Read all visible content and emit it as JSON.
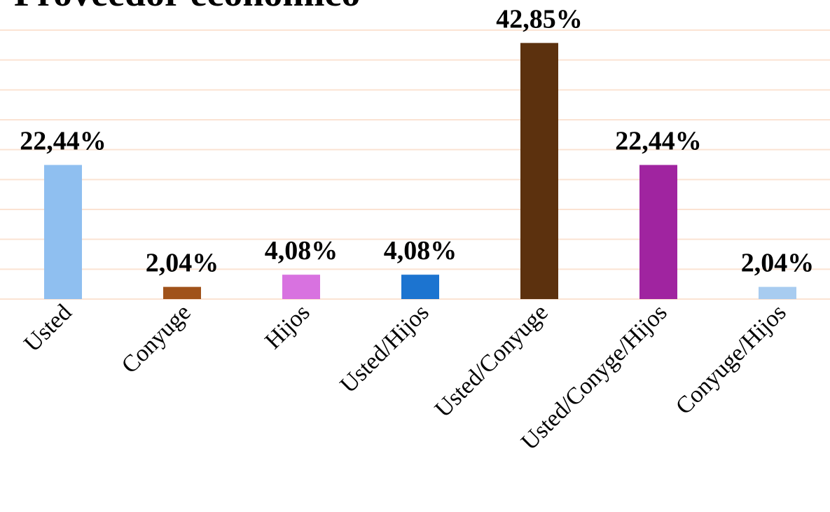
{
  "chart_data": {
    "type": "bar",
    "title": "Proveedor económico",
    "categories": [
      "Usted",
      "Conyuge",
      "Hijos",
      "Usted/Hijos",
      "Usted/Conyuge",
      "Usted/Conyge/Hijos",
      "Conyuge/Hijos"
    ],
    "values": [
      22.44,
      2.04,
      4.08,
      4.08,
      42.85,
      22.44,
      2.04
    ],
    "value_labels": [
      "22,44%",
      "2,04%",
      "4,08%",
      "4,08%",
      "42,85%",
      "22,44%",
      "2,04%"
    ],
    "colors": [
      "#8fbff0",
      "#a0521a",
      "#d872e0",
      "#1c74d0",
      "#5c310e",
      "#a024a0",
      "#a8ccf0"
    ],
    "ylim": [
      0,
      45
    ],
    "yticks": [
      0,
      5,
      10,
      15,
      20,
      25,
      30,
      35,
      40,
      45
    ],
    "grid": true
  }
}
